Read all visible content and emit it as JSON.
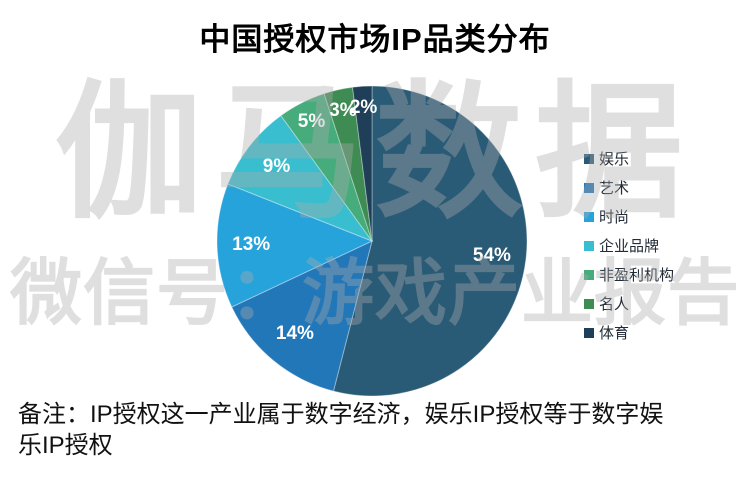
{
  "title": "中国授权市场IP品类分布",
  "watermark": {
    "line1": "伽马数据",
    "line2": "微信号：游戏产业报告"
  },
  "note": {
    "line1": "备注：IP授权这一产业属于数字经济，娱乐IP授权等于数字娱",
    "line2": "乐IP授权"
  },
  "chart_data": {
    "type": "pie",
    "title": "中国授权市场IP品类分布",
    "categories": [
      "娱乐",
      "艺术",
      "时尚",
      "企业品牌",
      "非盈利机构",
      "名人",
      "体育"
    ],
    "values": [
      54,
      14,
      13,
      9,
      5,
      3,
      2
    ],
    "labels": [
      "54%",
      "14%",
      "13%",
      "9%",
      "5%",
      "3%",
      "2%"
    ],
    "colors": [
      "#2A5B76",
      "#2277B9",
      "#27A3DB",
      "#38BECE",
      "#46AC7C",
      "#3E8C53",
      "#1F3E57"
    ],
    "start_angle_deg": 0,
    "direction": "clockwise",
    "legend_position": "right",
    "data_label_color": "#FFFFFF",
    "background": "#FFFFFF"
  }
}
